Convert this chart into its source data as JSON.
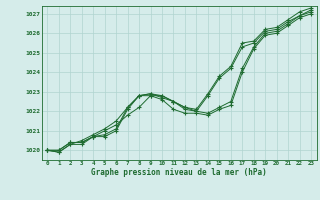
{
  "title": "Graphe pression niveau de la mer (hPa)",
  "xlabel_hours": [
    0,
    1,
    2,
    3,
    4,
    5,
    6,
    7,
    8,
    9,
    10,
    11,
    12,
    13,
    14,
    15,
    16,
    17,
    18,
    19,
    20,
    21,
    22,
    23
  ],
  "ylim": [
    1019.5,
    1027.4
  ],
  "yticks": [
    1020,
    1021,
    1022,
    1023,
    1024,
    1025,
    1026,
    1027
  ],
  "bg_color": "#d5ecea",
  "grid_color": "#b0d4d0",
  "line_color": "#1e6b30",
  "series": [
    [
      1020.0,
      1020.0,
      1020.4,
      1020.4,
      1020.7,
      1021.0,
      1021.3,
      1021.8,
      1022.2,
      1022.8,
      1022.8,
      1022.5,
      1022.1,
      1022.0,
      1022.8,
      1023.7,
      1024.2,
      1025.3,
      1025.5,
      1026.1,
      1026.2,
      1026.6,
      1026.9,
      1027.2
    ],
    [
      1020.0,
      1019.9,
      1020.3,
      1020.5,
      1020.8,
      1021.1,
      1021.5,
      1022.2,
      1022.8,
      1022.9,
      1022.8,
      1022.5,
      1022.2,
      1022.1,
      1022.9,
      1023.8,
      1024.3,
      1025.5,
      1025.6,
      1026.2,
      1026.3,
      1026.7,
      1027.1,
      1027.3
    ],
    [
      1020.0,
      1020.0,
      1020.4,
      1020.4,
      1020.7,
      1020.8,
      1021.1,
      1022.2,
      1022.8,
      1022.9,
      1022.7,
      1022.5,
      1022.2,
      1022.0,
      1021.9,
      1022.2,
      1022.5,
      1024.2,
      1025.3,
      1026.0,
      1026.1,
      1026.5,
      1026.9,
      1027.1
    ],
    [
      1020.0,
      1019.9,
      1020.3,
      1020.3,
      1020.7,
      1020.7,
      1021.0,
      1022.1,
      1022.8,
      1022.8,
      1022.6,
      1022.1,
      1021.9,
      1021.9,
      1021.8,
      1022.1,
      1022.3,
      1024.0,
      1025.2,
      1025.9,
      1026.0,
      1026.4,
      1026.8,
      1027.0
    ]
  ]
}
